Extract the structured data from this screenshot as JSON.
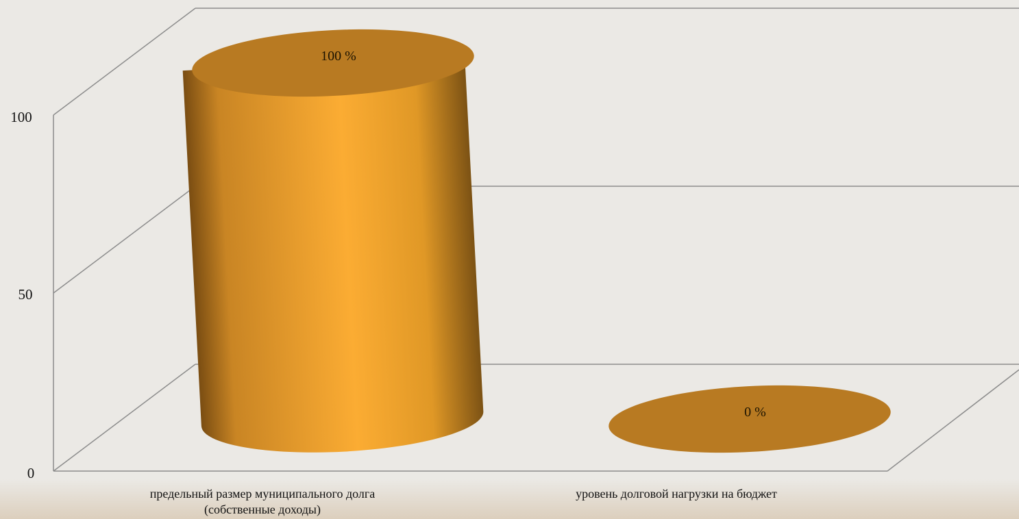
{
  "chart_data": {
    "type": "bar",
    "style": "3d-cylinder",
    "categories": [
      [
        "предельный размер муниципального долга",
        "(собственные доходы)"
      ],
      [
        "уровень долговой нагрузки на бюджет"
      ]
    ],
    "values": [
      100,
      0
    ],
    "data_labels": [
      "100 %",
      "0 %"
    ],
    "y_ticks": [
      "0",
      "50",
      "100"
    ],
    "ylim": [
      0,
      100
    ],
    "title": "",
    "xlabel": "",
    "ylabel": "",
    "grid": true,
    "legend": "none",
    "colors": {
      "bar_light": "#fbac33",
      "bar_dark": "#7a4d12",
      "bar_top": "#b87a22",
      "grid": "#8c8c8c",
      "background": "#ebe9e5",
      "floor_band": "#e2d7c8"
    }
  }
}
